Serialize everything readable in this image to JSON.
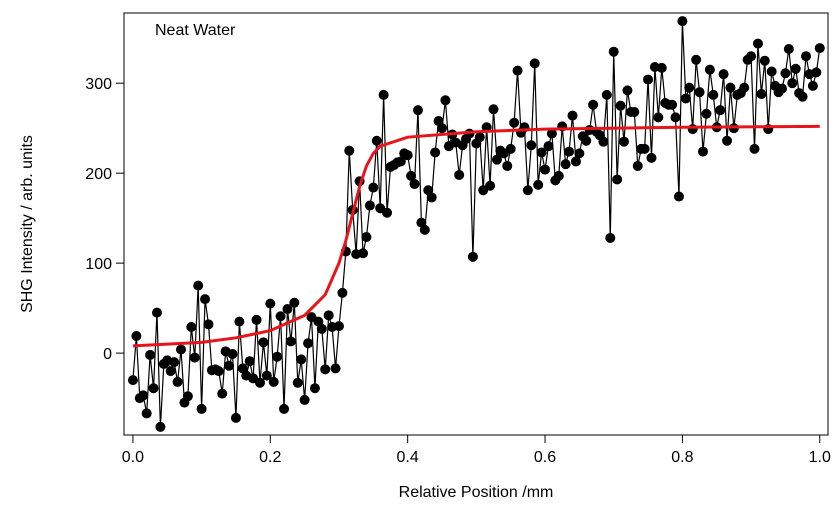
{
  "chart_data": {
    "type": "scatter",
    "xlabel": "Relative Position  /mm",
    "ylabel": "SHG Intensity   / arb. units",
    "annotation": "Neat Water",
    "xlim": [
      -0.013,
      1.012
    ],
    "ylim": [
      -91,
      378
    ],
    "xticks": [
      {
        "value": 0,
        "label": "0.0"
      },
      0.2,
      0.4,
      0.6,
      0.8,
      {
        "value": 1,
        "label": "1.0"
      }
    ],
    "yticks": [
      0,
      100,
      200,
      300
    ],
    "series": [
      {
        "color": "#000000",
        "markers": true,
        "line": true,
        "x": [
          0,
          0.005,
          0.01,
          0.015,
          0.02,
          0.025,
          0.03,
          0.035,
          0.04,
          0.045,
          0.05,
          0.055,
          0.06,
          0.065,
          0.07,
          0.075,
          0.08,
          0.085,
          0.09,
          0.095,
          0.1,
          0.105,
          0.11,
          0.115,
          0.12,
          0.125,
          0.13,
          0.135,
          0.14,
          0.145,
          0.15,
          0.155,
          0.16,
          0.165,
          0.17,
          0.175,
          0.18,
          0.185,
          0.19,
          0.195,
          0.2,
          0.205,
          0.21,
          0.215,
          0.22,
          0.225,
          0.23,
          0.235,
          0.24,
          0.245,
          0.25,
          0.255,
          0.26,
          0.265,
          0.27,
          0.275,
          0.28,
          0.285,
          0.29,
          0.295,
          0.3,
          0.305,
          0.31,
          0.315,
          0.32,
          0.325,
          0.33,
          0.335,
          0.34,
          0.345,
          0.35,
          0.355,
          0.36,
          0.365,
          0.37,
          0.375,
          0.38,
          0.385,
          0.39,
          0.395,
          0.4,
          0.405,
          0.41,
          0.415,
          0.42,
          0.425,
          0.43,
          0.435,
          0.44,
          0.445,
          0.45,
          0.455,
          0.46,
          0.465,
          0.47,
          0.475,
          0.48,
          0.485,
          0.49,
          0.495,
          0.5,
          0.505,
          0.51,
          0.515,
          0.52,
          0.525,
          0.53,
          0.535,
          0.54,
          0.545,
          0.55,
          0.555,
          0.56,
          0.565,
          0.57,
          0.575,
          0.58,
          0.585,
          0.59,
          0.595,
          0.6,
          0.605,
          0.61,
          0.615,
          0.62,
          0.625,
          0.63,
          0.635,
          0.64,
          0.645,
          0.65,
          0.655,
          0.66,
          0.665,
          0.67,
          0.675,
          0.68,
          0.685,
          0.69,
          0.695,
          0.7,
          0.705,
          0.71,
          0.715,
          0.72,
          0.725,
          0.73,
          0.735,
          0.74,
          0.745,
          0.75,
          0.755,
          0.76,
          0.765,
          0.77,
          0.775,
          0.78,
          0.785,
          0.79,
          0.795,
          0.8,
          0.805,
          0.81,
          0.815,
          0.82,
          0.825,
          0.83,
          0.835,
          0.84,
          0.845,
          0.85,
          0.855,
          0.86,
          0.865,
          0.87,
          0.875,
          0.88,
          0.885,
          0.89,
          0.895,
          0.9,
          0.905,
          0.91,
          0.915,
          0.92,
          0.925,
          0.93,
          0.935,
          0.94,
          0.945,
          0.95,
          0.955,
          0.96,
          0.965,
          0.97,
          0.975,
          0.98,
          0.985,
          0.99,
          0.995,
          1
        ],
        "values": [
          -30,
          19,
          -50,
          -47,
          -67,
          -2,
          -39,
          45,
          -82,
          -12,
          -8,
          -20,
          -10,
          -32,
          4,
          -55,
          -48,
          29,
          -5,
          75,
          -62,
          60,
          32,
          -19,
          -18,
          -20,
          -45,
          2,
          -14,
          -1,
          -72,
          35,
          -17,
          -25,
          -9,
          -28,
          37,
          -33,
          12,
          -25,
          55,
          -32,
          -4,
          41,
          -62,
          49,
          13,
          56,
          -33,
          -7,
          -52,
          11,
          40,
          -39,
          35,
          27,
          -18,
          42,
          29,
          -17,
          30,
          67,
          113,
          225,
          159,
          110,
          191,
          111,
          129,
          164,
          184,
          236,
          161,
          287,
          156,
          207,
          209,
          212,
          213,
          222,
          220,
          197,
          188,
          270,
          145,
          137,
          181,
          173,
          223,
          258,
          250,
          281,
          230,
          243,
          234,
          198,
          231,
          238,
          244,
          107,
          233,
          240,
          181,
          251,
          186,
          271,
          215,
          225,
          222,
          208,
          227,
          256,
          314,
          245,
          251,
          181,
          231,
          322,
          187,
          223,
          204,
          230,
          244,
          192,
          197,
          252,
          210,
          224,
          264,
          213,
          222,
          241,
          236,
          248,
          276,
          246,
          242,
          235,
          287,
          128,
          335,
          193,
          275,
          235,
          292,
          268,
          268,
          208,
          227,
          227,
          304,
          217,
          318,
          262,
          317,
          278,
          276,
          276,
          262,
          174,
          369,
          283,
          295,
          249,
          326,
          290,
          224,
          266,
          315,
          287,
          251,
          270,
          310,
          236,
          295,
          250,
          287,
          289,
          295,
          326,
          330,
          227,
          344,
          288,
          325,
          249,
          313,
          297,
          290,
          294,
          311,
          338,
          300,
          316,
          289,
          285,
          330,
          310,
          297,
          312,
          339
        ]
      },
      {
        "color": "#e8141b",
        "markers": false,
        "line": true,
        "x": [
          0,
          0.05,
          0.1,
          0.15,
          0.2,
          0.25,
          0.28,
          0.3,
          0.31,
          0.32,
          0.33,
          0.34,
          0.35,
          0.36,
          0.4,
          0.5,
          0.6,
          0.8,
          1
        ],
        "values": [
          8,
          10,
          12,
          17,
          25,
          42,
          65,
          100,
          125,
          155,
          185,
          208,
          222,
          230,
          240,
          246,
          249,
          251,
          252
        ]
      }
    ]
  }
}
